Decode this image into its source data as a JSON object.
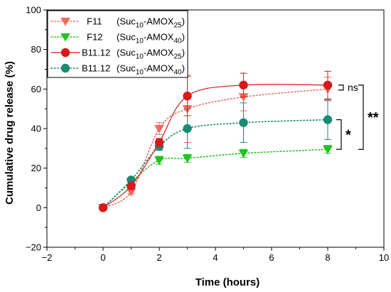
{
  "chart_data": {
    "type": "line",
    "xlabel": "Time (hours)",
    "ylabel": "Cumulative drug release (%)",
    "xlim": [
      -2,
      10
    ],
    "ylim": [
      -20,
      100
    ],
    "xticks": [
      -2,
      0,
      2,
      4,
      6,
      8,
      10
    ],
    "yticks": [
      -20,
      0,
      20,
      40,
      60,
      80,
      100
    ],
    "x": [
      0,
      1,
      2,
      3,
      5,
      8
    ],
    "legend_position": "top-left",
    "series": [
      {
        "name": "F11",
        "formulation": {
          "base": "(Suc",
          "sub1": "10",
          "mid": "-AMOX",
          "sub2": "25",
          "end": ")"
        },
        "marker": "triangle-down",
        "line": "dotted",
        "color": "#f06a60",
        "values": [
          0,
          8,
          40,
          50,
          56,
          60
        ],
        "errors": [
          0,
          1,
          3,
          17,
          7,
          6
        ]
      },
      {
        "name": "F12",
        "formulation": {
          "base": "(Suc",
          "sub1": "10",
          "mid": "-AMOX",
          "sub2": "40",
          "end": ")"
        },
        "marker": "triangle-down",
        "line": "dotted",
        "color": "#22c222",
        "values": [
          0,
          13,
          24,
          25,
          27.5,
          29.5
        ],
        "errors": [
          0,
          1,
          2,
          2,
          2,
          2
        ]
      },
      {
        "name": "B11.12",
        "formulation": {
          "base": "(Suc",
          "sub1": "10",
          "mid": "-AMOX",
          "sub2": "25",
          "end": ")"
        },
        "marker": "circle",
        "line": "solid",
        "color": "#d7191c",
        "values": [
          0,
          11,
          33,
          56.5,
          62,
          62
        ],
        "errors": [
          0,
          1,
          2,
          10,
          6,
          7
        ]
      },
      {
        "name": "B11.12",
        "formulation": {
          "base": "(Suc",
          "sub1": "10",
          "mid": "-AMOX",
          "sub2": "40",
          "end": ")"
        },
        "marker": "circle",
        "line": "dotted",
        "color": "#1a8a72",
        "values": [
          0,
          14,
          31,
          40,
          43,
          44.5
        ],
        "errors": [
          0,
          1,
          2,
          10,
          10,
          10
        ]
      }
    ],
    "annotations": [
      {
        "text": "ns",
        "between": [
          62,
          59.5
        ],
        "at_x": 8
      },
      {
        "text": "*",
        "between": [
          44.5,
          29.5
        ],
        "at_x": 8
      },
      {
        "text": "**",
        "between": [
          62,
          29.5
        ],
        "at_x": 8
      }
    ]
  }
}
